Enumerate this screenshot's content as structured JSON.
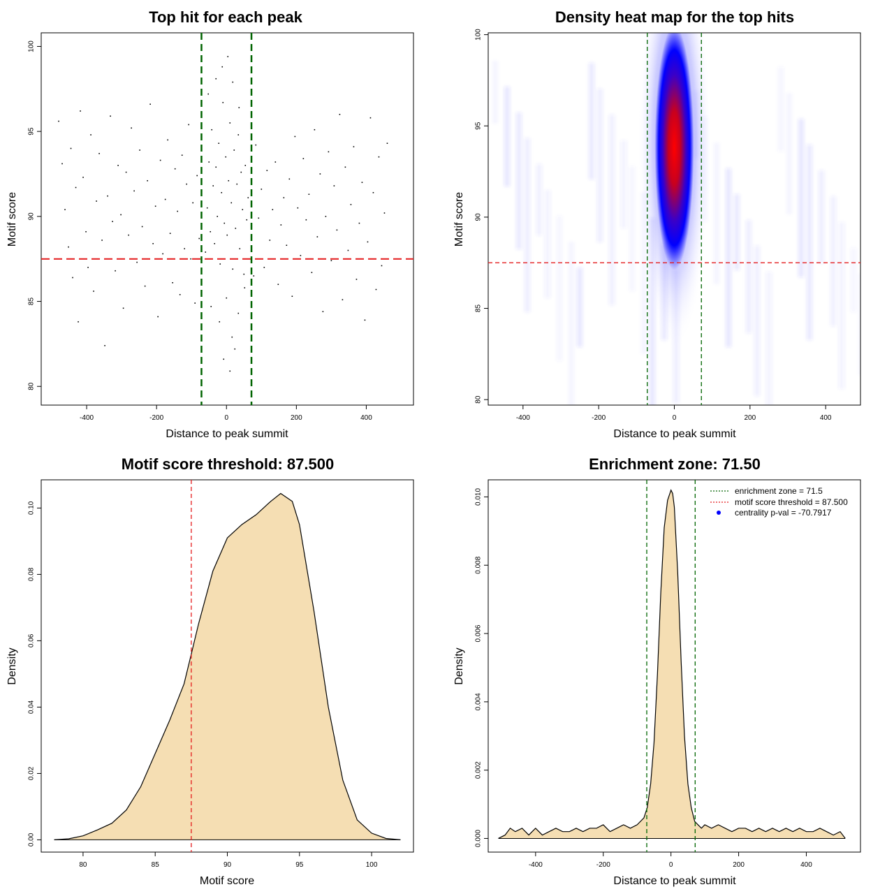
{
  "chart_data": [
    {
      "id": "p1",
      "type": "scatter",
      "title": "Top hit for each peak",
      "xlabel": "Distance to peak summit",
      "ylabel": "Motif score",
      "xlim": [
        -530,
        535
      ],
      "ylim": [
        78.9,
        100.8
      ],
      "xticks": [
        -400,
        -200,
        0,
        200,
        400
      ],
      "xtick_labels": [
        "-400",
        "-200",
        "0",
        "200",
        "400"
      ],
      "yticks": [
        80,
        85,
        90,
        95,
        100
      ],
      "ytick_labels": [
        "80",
        "85",
        "90",
        "95",
        "100"
      ],
      "enrichment_zone": 71.5,
      "threshold": 87.5,
      "vlines": [
        -71.5,
        71.5
      ],
      "hline": 87.5,
      "colors": {
        "points": "#000000",
        "vline": "#006400",
        "hline": "#e41a1c"
      },
      "points": [
        [
          -480,
          95.6
        ],
        [
          -470,
          93.1
        ],
        [
          -462,
          90.4
        ],
        [
          -452,
          88.2
        ],
        [
          -445,
          94.0
        ],
        [
          -440,
          86.4
        ],
        [
          -431,
          91.7
        ],
        [
          -424,
          83.8
        ],
        [
          -418,
          96.2
        ],
        [
          -410,
          92.3
        ],
        [
          -402,
          89.1
        ],
        [
          -396,
          87.0
        ],
        [
          -388,
          94.8
        ],
        [
          -380,
          85.6
        ],
        [
          -372,
          90.9
        ],
        [
          -364,
          93.7
        ],
        [
          -356,
          88.6
        ],
        [
          -348,
          82.4
        ],
        [
          -340,
          91.2
        ],
        [
          -332,
          95.9
        ],
        [
          -326,
          89.7
        ],
        [
          -318,
          86.8
        ],
        [
          -310,
          93.0
        ],
        [
          -302,
          90.1
        ],
        [
          -295,
          84.6
        ],
        [
          -287,
          92.6
        ],
        [
          -280,
          88.9
        ],
        [
          -272,
          95.2
        ],
        [
          -264,
          91.5
        ],
        [
          -256,
          87.3
        ],
        [
          -248,
          93.9
        ],
        [
          -241,
          89.4
        ],
        [
          -233,
          85.9
        ],
        [
          -226,
          92.1
        ],
        [
          -218,
          96.6
        ],
        [
          -210,
          88.4
        ],
        [
          -203,
          90.6
        ],
        [
          -196,
          84.1
        ],
        [
          -189,
          93.3
        ],
        [
          -182,
          87.8
        ],
        [
          -175,
          91.0
        ],
        [
          -168,
          94.5
        ],
        [
          -161,
          89.0
        ],
        [
          -154,
          86.1
        ],
        [
          -147,
          92.8
        ],
        [
          -140,
          90.3
        ],
        [
          -133,
          85.4
        ],
        [
          -127,
          93.6
        ],
        [
          -120,
          88.1
        ],
        [
          -114,
          91.9
        ],
        [
          -108,
          95.4
        ],
        [
          -102,
          87.5
        ],
        [
          -96,
          90.8
        ],
        [
          -90,
          84.9
        ],
        [
          -84,
          92.4
        ],
        [
          -78,
          88.7
        ],
        [
          460,
          94.3
        ],
        [
          452,
          90.2
        ],
        [
          444,
          87.1
        ],
        [
          436,
          93.5
        ],
        [
          428,
          85.7
        ],
        [
          420,
          91.4
        ],
        [
          412,
          95.8
        ],
        [
          404,
          88.5
        ],
        [
          396,
          83.9
        ],
        [
          388,
          92.0
        ],
        [
          380,
          89.6
        ],
        [
          372,
          86.3
        ],
        [
          364,
          94.1
        ],
        [
          356,
          90.7
        ],
        [
          348,
          88.0
        ],
        [
          340,
          92.9
        ],
        [
          332,
          85.1
        ],
        [
          324,
          96.0
        ],
        [
          316,
          89.2
        ],
        [
          308,
          91.8
        ],
        [
          300,
          87.4
        ],
        [
          292,
          93.8
        ],
        [
          284,
          90.0
        ],
        [
          276,
          84.4
        ],
        [
          268,
          92.5
        ],
        [
          260,
          88.8
        ],
        [
          252,
          95.1
        ],
        [
          244,
          86.7
        ],
        [
          236,
          91.3
        ],
        [
          228,
          89.8
        ],
        [
          220,
          93.4
        ],
        [
          212,
          87.7
        ],
        [
          204,
          90.5
        ],
        [
          196,
          94.7
        ],
        [
          188,
          85.3
        ],
        [
          180,
          92.2
        ],
        [
          172,
          88.3
        ],
        [
          164,
          91.1
        ],
        [
          156,
          89.5
        ],
        [
          148,
          86.0
        ],
        [
          140,
          93.2
        ],
        [
          132,
          90.4
        ],
        [
          124,
          88.6
        ],
        [
          116,
          92.7
        ],
        [
          108,
          87.0
        ],
        [
          100,
          91.6
        ],
        [
          92,
          89.9
        ],
        [
          84,
          94.2
        ],
        [
          78,
          86.5
        ],
        [
          -60,
          87.9
        ],
        [
          -55,
          90.5
        ],
        [
          -50,
          93.2
        ],
        [
          -46,
          89.1
        ],
        [
          -42,
          95.1
        ],
        [
          -38,
          91.8
        ],
        [
          -34,
          88.4
        ],
        [
          -30,
          92.9
        ],
        [
          -26,
          90.0
        ],
        [
          -22,
          94.3
        ],
        [
          -18,
          87.2
        ],
        [
          -14,
          91.4
        ],
        [
          -10,
          96.7
        ],
        [
          -6,
          89.6
        ],
        [
          -2,
          93.5
        ],
        [
          2,
          88.9
        ],
        [
          6,
          92.1
        ],
        [
          10,
          95.5
        ],
        [
          14,
          90.8
        ],
        [
          18,
          86.9
        ],
        [
          22,
          93.9
        ],
        [
          26,
          89.3
        ],
        [
          30,
          91.9
        ],
        [
          34,
          94.8
        ],
        [
          38,
          88.1
        ],
        [
          42,
          92.6
        ],
        [
          46,
          90.4
        ],
        [
          50,
          86.6
        ],
        [
          54,
          93.0
        ],
        [
          58,
          89.8
        ],
        [
          62,
          91.1
        ],
        [
          -52,
          97.2
        ],
        [
          -30,
          98.1
        ],
        [
          -12,
          98.8
        ],
        [
          4,
          99.4
        ],
        [
          18,
          97.9
        ],
        [
          36,
          96.4
        ],
        [
          -44,
          84.7
        ],
        [
          -20,
          83.8
        ],
        [
          0,
          85.2
        ],
        [
          16,
          82.9
        ],
        [
          34,
          84.3
        ],
        [
          52,
          85.8
        ],
        [
          -8,
          81.6
        ],
        [
          10,
          80.9
        ],
        [
          24,
          82.2
        ]
      ]
    },
    {
      "id": "p2",
      "type": "heatmap",
      "title": "Density heat map for the top hits",
      "xlabel": "Distance to peak summit",
      "ylabel": "Motif score",
      "xlim": [
        -492,
        492
      ],
      "ylim": [
        79.7,
        100.1
      ],
      "xticks": [
        -400,
        -200,
        0,
        200,
        400
      ],
      "xtick_labels": [
        "-400",
        "-200",
        "0",
        "200",
        "400"
      ],
      "yticks": [
        80,
        85,
        90,
        95,
        100
      ],
      "ytick_labels": [
        "80",
        "85",
        "90",
        "95",
        "100"
      ],
      "vlines": [
        -71.5,
        71.5
      ],
      "hline": 87.5,
      "colors": {
        "low": "#ffffff",
        "mid": "#0000ff",
        "high": "#ff0000",
        "vline": "#006400",
        "hline": "#e41a1c"
      },
      "hotspot": {
        "x": 0,
        "y": 93.8
      }
    },
    {
      "id": "p3",
      "type": "area",
      "title": "Motif score threshold: 87.500",
      "xlabel": "Motif score",
      "ylabel": "Density",
      "xlim": [
        77.1,
        102.9
      ],
      "ylim": [
        -0.0037,
        0.1085
      ],
      "xticks": [
        80,
        85,
        90,
        95,
        100
      ],
      "xtick_labels": [
        "80",
        "85",
        "90",
        "95",
        "100"
      ],
      "yticks": [
        0,
        0.02,
        0.04,
        0.06,
        0.08,
        0.1
      ],
      "ytick_labels": [
        "0.00",
        "0.02",
        "0.04",
        "0.06",
        "0.08",
        "0.10"
      ],
      "vline": 87.5,
      "colors": {
        "fill": "#f5deb3",
        "line": "#000000",
        "vline": "#e41a1c"
      },
      "x": [
        78,
        79,
        80,
        81,
        82,
        83,
        84,
        85,
        86,
        87,
        87.5,
        88,
        89,
        90,
        91,
        92,
        93,
        93.7,
        94.5,
        95,
        96,
        97,
        98,
        99,
        100,
        101,
        102
      ],
      "y": [
        0.0,
        0.0003,
        0.0012,
        0.003,
        0.005,
        0.009,
        0.016,
        0.026,
        0.036,
        0.047,
        0.056,
        0.065,
        0.081,
        0.091,
        0.095,
        0.098,
        0.102,
        0.1044,
        0.102,
        0.095,
        0.069,
        0.04,
        0.018,
        0.006,
        0.002,
        0.0004,
        0.0
      ]
    },
    {
      "id": "p4",
      "type": "area",
      "title": "Enrichment zone: 71.50",
      "xlabel": "Distance to peak summit",
      "ylabel": "Density",
      "xlim": [
        -540,
        560
      ],
      "ylim": [
        -0.0004,
        0.0105
      ],
      "xticks": [
        -400,
        -200,
        0,
        200,
        400
      ],
      "xtick_labels": [
        "-400",
        "-200",
        "0",
        "200",
        "400"
      ],
      "yticks": [
        0,
        0.002,
        0.004,
        0.006,
        0.008,
        0.01
      ],
      "ytick_labels": [
        "0.000",
        "0.002",
        "0.004",
        "0.006",
        "0.008",
        "0.010"
      ],
      "vlines": [
        -71.5,
        71.5
      ],
      "colors": {
        "fill": "#f5deb3",
        "line": "#000000",
        "vline": "#006400",
        "legend_dot": "#0000ff",
        "legend_red": "#e41a1c"
      },
      "legend": [
        {
          "label": "enrichment zone = 71.5",
          "style": "green-dotted"
        },
        {
          "label": "motif score threshold = 87.500",
          "style": "red-dotted"
        },
        {
          "label": "centrality p-val = -70.7917",
          "style": "blue-dot"
        }
      ],
      "legend_position": "top-right",
      "x": [
        -510,
        -490,
        -475,
        -460,
        -440,
        -420,
        -400,
        -380,
        -360,
        -340,
        -320,
        -300,
        -280,
        -260,
        -240,
        -220,
        -200,
        -180,
        -160,
        -140,
        -120,
        -100,
        -80,
        -70,
        -60,
        -50,
        -40,
        -30,
        -20,
        -10,
        0,
        5,
        10,
        20,
        30,
        40,
        50,
        60,
        70,
        80,
        90,
        100,
        120,
        140,
        160,
        180,
        200,
        220,
        240,
        260,
        280,
        300,
        320,
        340,
        360,
        380,
        400,
        420,
        440,
        460,
        480,
        500,
        515
      ],
      "y": [
        0.0,
        0.0001,
        0.0003,
        0.0002,
        0.0003,
        0.0001,
        0.0003,
        0.0001,
        0.0002,
        0.0003,
        0.0002,
        0.0002,
        0.0003,
        0.0002,
        0.0003,
        0.0003,
        0.0004,
        0.0002,
        0.0003,
        0.0004,
        0.0003,
        0.0004,
        0.0006,
        0.0009,
        0.0016,
        0.0028,
        0.0048,
        0.0072,
        0.0091,
        0.0099,
        0.0102,
        0.0101,
        0.0097,
        0.0078,
        0.0052,
        0.003,
        0.0016,
        0.0009,
        0.0005,
        0.0004,
        0.0003,
        0.0004,
        0.0003,
        0.0004,
        0.0003,
        0.0002,
        0.0003,
        0.0003,
        0.0002,
        0.0003,
        0.0002,
        0.0003,
        0.0002,
        0.0003,
        0.0002,
        0.0003,
        0.0002,
        0.0002,
        0.0003,
        0.0002,
        0.0001,
        0.0002,
        0.0
      ]
    }
  ]
}
